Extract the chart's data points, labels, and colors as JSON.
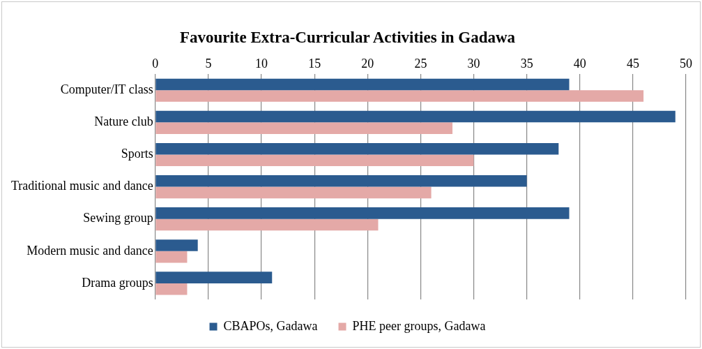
{
  "chart_data": {
    "type": "bar",
    "orientation": "horizontal",
    "title": "Favourite Extra-Curricular Activities in Gadawa",
    "categories": [
      "Computer/IT class",
      "Nature club",
      "Sports",
      "Traditional music and dance",
      "Sewing group",
      "Modern music and dance",
      "Drama groups"
    ],
    "series": [
      {
        "name": "CBAPOs, Gadawa",
        "color": "#2b5b8f",
        "values": [
          39,
          49,
          38,
          35,
          39,
          4,
          11
        ]
      },
      {
        "name": "PHE peer groups, Gadawa",
        "color": "#e4a9a7",
        "values": [
          46,
          28,
          30,
          26,
          21,
          3,
          3
        ]
      }
    ],
    "xlim": [
      0,
      50
    ],
    "xticks": [
      0,
      5,
      10,
      15,
      20,
      25,
      30,
      35,
      40,
      45,
      50
    ],
    "grid": "x",
    "legend": "bottom"
  }
}
